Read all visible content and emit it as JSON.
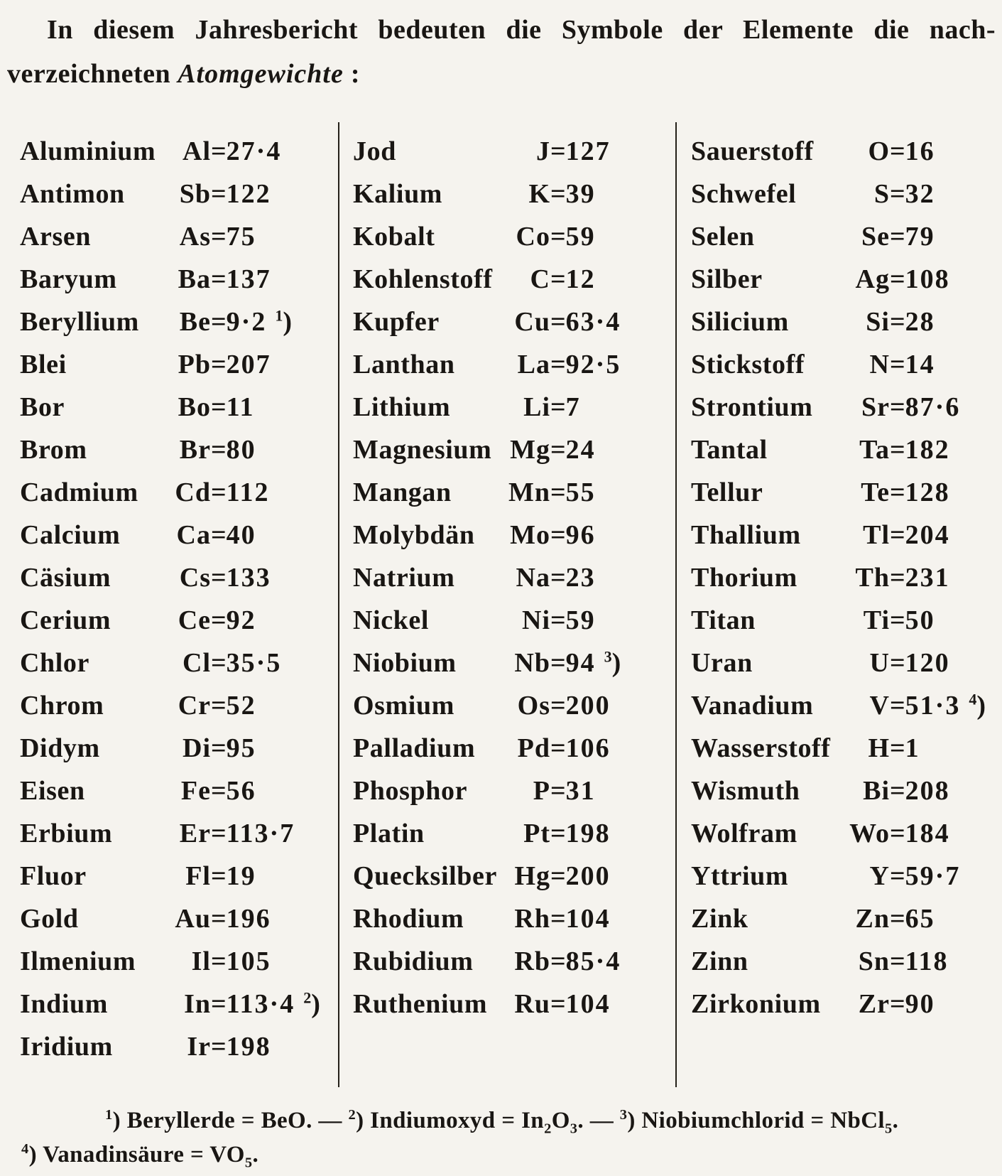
{
  "intro": {
    "line1": "In diesem Jahresbericht bedeuten die Symbole der Elemente die nach-",
    "line2_prefix": "verzeichneten ",
    "line2_italic": "Atomgewichte",
    "line2_suffix": " :"
  },
  "columns": [
    [
      {
        "name": "Aluminium",
        "symbol": "Al",
        "value": "27·4"
      },
      {
        "name": "Antimon",
        "symbol": "Sb",
        "value": "122"
      },
      {
        "name": "Arsen",
        "symbol": "As",
        "value": "75"
      },
      {
        "name": "Baryum",
        "symbol": "Ba",
        "value": "137"
      },
      {
        "name": "Beryllium",
        "symbol": "Be",
        "value": "9·2",
        "note": "1"
      },
      {
        "name": "Blei",
        "symbol": "Pb",
        "value": "207"
      },
      {
        "name": "Bor",
        "symbol": "Bo",
        "value": "11"
      },
      {
        "name": "Brom",
        "symbol": "Br",
        "value": "80"
      },
      {
        "name": "Cadmium",
        "symbol": "Cd",
        "value": "112"
      },
      {
        "name": "Calcium",
        "symbol": "Ca",
        "value": "40"
      },
      {
        "name": "Cäsium",
        "symbol": "Cs",
        "value": "133"
      },
      {
        "name": "Cerium",
        "symbol": "Ce",
        "value": "92"
      },
      {
        "name": "Chlor",
        "symbol": "Cl",
        "value": "35·5"
      },
      {
        "name": "Chrom",
        "symbol": "Cr",
        "value": "52"
      },
      {
        "name": "Didym",
        "symbol": "Di",
        "value": "95"
      },
      {
        "name": "Eisen",
        "symbol": "Fe",
        "value": "56"
      },
      {
        "name": "Erbium",
        "symbol": "Er",
        "value": "113·7"
      },
      {
        "name": "Fluor",
        "symbol": "Fl",
        "value": "19"
      },
      {
        "name": "Gold",
        "symbol": "Au",
        "value": "196"
      },
      {
        "name": "Ilmenium",
        "symbol": "Il",
        "value": "105"
      },
      {
        "name": "Indium",
        "symbol": "In",
        "value": "113·4",
        "note": "2"
      },
      {
        "name": "Iridium",
        "symbol": "Ir",
        "value": "198"
      }
    ],
    [
      {
        "name": "Jod",
        "symbol": "J",
        "value": "127"
      },
      {
        "name": "Kalium",
        "symbol": "K",
        "value": "39"
      },
      {
        "name": "Kobalt",
        "symbol": "Co",
        "value": "59"
      },
      {
        "name": "Kohlenstoff",
        "symbol": "C",
        "value": "12"
      },
      {
        "name": "Kupfer",
        "symbol": "Cu",
        "value": "63·4"
      },
      {
        "name": "Lanthan",
        "symbol": "La",
        "value": "92·5"
      },
      {
        "name": "Lithium",
        "symbol": "Li",
        "value": "7"
      },
      {
        "name": "Magnesium",
        "symbol": "Mg",
        "value": "24"
      },
      {
        "name": "Mangan",
        "symbol": "Mn",
        "value": "55"
      },
      {
        "name": "Molybdän",
        "symbol": "Mo",
        "value": "96"
      },
      {
        "name": "Natrium",
        "symbol": "Na",
        "value": "23"
      },
      {
        "name": "Nickel",
        "symbol": "Ni",
        "value": "59"
      },
      {
        "name": "Niobium",
        "symbol": "Nb",
        "value": "94",
        "note": "3"
      },
      {
        "name": "Osmium",
        "symbol": "Os",
        "value": "200"
      },
      {
        "name": "Palladium",
        "symbol": "Pd",
        "value": "106"
      },
      {
        "name": "Phosphor",
        "symbol": "P",
        "value": "31"
      },
      {
        "name": "Platin",
        "symbol": "Pt",
        "value": "198"
      },
      {
        "name": "Quecksilber",
        "symbol": "Hg",
        "value": "200"
      },
      {
        "name": "Rhodium",
        "symbol": "Rh",
        "value": "104"
      },
      {
        "name": "Rubidium",
        "symbol": "Rb",
        "value": "85·4"
      },
      {
        "name": "Ruthenium",
        "symbol": "Ru",
        "value": "104"
      }
    ],
    [
      {
        "name": "Sauerstoff",
        "symbol": "O",
        "value": "16"
      },
      {
        "name": "Schwefel",
        "symbol": "S",
        "value": "32"
      },
      {
        "name": "Selen",
        "symbol": "Se",
        "value": "79"
      },
      {
        "name": "Silber",
        "symbol": "Ag",
        "value": "108"
      },
      {
        "name": "Silicium",
        "symbol": "Si",
        "value": "28"
      },
      {
        "name": "Stickstoff",
        "symbol": "N",
        "value": "14"
      },
      {
        "name": "Strontium",
        "symbol": "Sr",
        "value": "87·6"
      },
      {
        "name": "Tantal",
        "symbol": "Ta",
        "value": "182"
      },
      {
        "name": "Tellur",
        "symbol": "Te",
        "value": "128"
      },
      {
        "name": "Thallium",
        "symbol": "Tl",
        "value": "204"
      },
      {
        "name": "Thorium",
        "symbol": "Th",
        "value": "231"
      },
      {
        "name": "Titan",
        "symbol": "Ti",
        "value": "50"
      },
      {
        "name": "Uran",
        "symbol": "U",
        "value": "120"
      },
      {
        "name": "Vanadium",
        "symbol": "V",
        "value": "51·3",
        "note": "4"
      },
      {
        "name": "Wasserstoff",
        "symbol": "H",
        "value": "1"
      },
      {
        "name": "Wismuth",
        "symbol": "Bi",
        "value": "208"
      },
      {
        "name": "Wolfram",
        "symbol": "Wo",
        "value": "184"
      },
      {
        "name": "Yttrium",
        "symbol": "Y",
        "value": "59·7"
      },
      {
        "name": "Zink",
        "symbol": "Zn",
        "value": "65"
      },
      {
        "name": "Zinn",
        "symbol": "Sn",
        "value": "118"
      },
      {
        "name": "Zirkonium",
        "symbol": "Zr",
        "value": "90"
      }
    ]
  ],
  "footnote_lines": [
    {
      "segments": [
        {
          "sup": "1"
        },
        {
          "text": ") Beryllerde = BeO. — "
        },
        {
          "sup": "2"
        },
        {
          "text": ") Indiumoxyd = In"
        },
        {
          "sub": "2"
        },
        {
          "text": "O"
        },
        {
          "sub": "3"
        },
        {
          "text": ". — "
        },
        {
          "sup": "3"
        },
        {
          "text": ") Niobiumchlorid = NbCl"
        },
        {
          "sub": "5"
        },
        {
          "text": "."
        }
      ]
    },
    {
      "segments": [
        {
          "sup": "4"
        },
        {
          "text": ") Vanadinsäure = VO"
        },
        {
          "sub": "5"
        },
        {
          "text": "."
        }
      ]
    }
  ]
}
